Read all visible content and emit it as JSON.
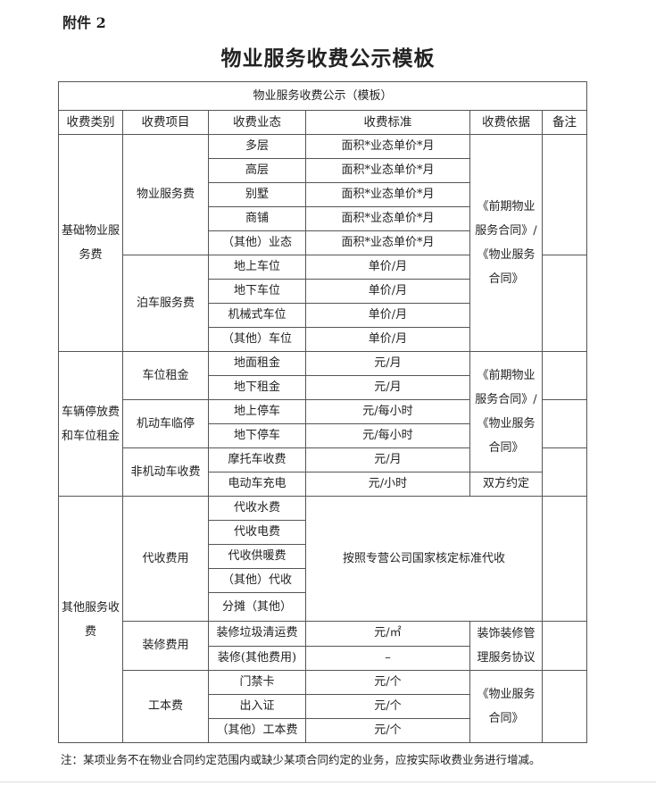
{
  "header": {
    "attachment": "附件 2",
    "title": "物业服务收费公示模板"
  },
  "table": {
    "caption": "物业服务收费公示（模板）",
    "columns": [
      "收费类别",
      "收费项目",
      "收费业态",
      "收费标准",
      "收费依据",
      "备注"
    ],
    "basic": {
      "category": "基础物业服务费",
      "item1": "物业服务费",
      "item1_rows": [
        [
          "多层",
          "面积*业态单价*月"
        ],
        [
          "高层",
          "面积*业态单价*月"
        ],
        [
          "别墅",
          "面积*业态单价*月"
        ],
        [
          "商铺",
          "面积*业态单价*月"
        ],
        [
          "（其他）业态",
          "面积*业态单价*月"
        ]
      ],
      "item2": "泊车服务费",
      "item2_rows": [
        [
          "地上车位",
          "单价/月"
        ],
        [
          "地下车位",
          "单价/月"
        ],
        [
          "机械式车位",
          "单价/月"
        ],
        [
          "（其他）车位",
          "单价/月"
        ]
      ],
      "basis": "《前期物业服务合同》/《物业服务合同》"
    },
    "vehicle": {
      "category": "车辆停放费和车位租金",
      "item1": "车位租金",
      "item1_rows": [
        [
          "地面租金",
          "元/月"
        ],
        [
          "地下租金",
          "元/月"
        ]
      ],
      "item2": "机动车临停",
      "item2_rows": [
        [
          "地上停车",
          "元/每小时"
        ],
        [
          "地下停车",
          "元/每小时"
        ]
      ],
      "item3": "非机动车收费",
      "item3_rows": [
        [
          "摩托车收费",
          "元/月"
        ],
        [
          "电动车充电",
          "元/小时"
        ]
      ],
      "basis": "《前期物业服务合同》/《物业服务合同》",
      "basis2": "双方约定"
    },
    "other": {
      "category": "其他服务收费",
      "item1": "代收费用",
      "item1_rows": [
        "代收水费",
        "代收电费",
        "代收供暖费",
        "（其他）代收",
        "分摊（其他）"
      ],
      "item1_standard": "按照专营公司国家核定标准代收",
      "item2": "装修费用",
      "item2_rows": [
        [
          "装修垃圾清运费",
          "元/㎡"
        ],
        [
          "装修(其他费用)",
          "–"
        ]
      ],
      "item2_basis": "装饰装修管理服务协议",
      "item3": "工本费",
      "item3_rows": [
        [
          "门禁卡",
          "元/个"
        ],
        [
          "出入证",
          "元/个"
        ],
        [
          "（其他）工本费",
          "元/个"
        ]
      ],
      "item3_basis": "《物业服务合同》"
    }
  },
  "note": "注：某项业务不在物业合同约定范围内或缺少某项合同约定的业务，应按实际收费业务进行增减。"
}
